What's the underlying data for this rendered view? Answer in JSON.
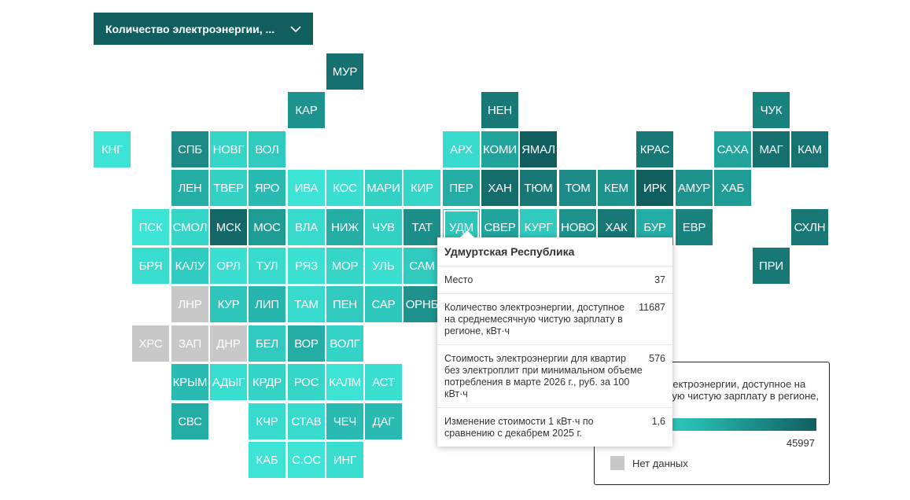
{
  "dropdown": {
    "label": "Количество электроэнергии, ...",
    "icon": "chevron-down-icon"
  },
  "map": {
    "no_data_color": "#c8c8c8",
    "scale_colors": [
      "#3fe9da",
      "#26b6ad",
      "#115e5f"
    ],
    "selected": "УДМ",
    "tiles": [
      {
        "code": "МУР",
        "col": 6,
        "row": 0,
        "v": 0.9
      },
      {
        "code": "КАР",
        "col": 5,
        "row": 1,
        "v": 0.7
      },
      {
        "code": "НЕН",
        "col": 10,
        "row": 1,
        "v": 0.85
      },
      {
        "code": "ЧУК",
        "col": 17,
        "row": 1,
        "v": 0.8
      },
      {
        "code": "КНГ",
        "col": 0,
        "row": 2,
        "v": 0.05
      },
      {
        "code": "СПБ",
        "col": 2,
        "row": 2,
        "v": 0.75
      },
      {
        "code": "НОВГ",
        "col": 3,
        "row": 2,
        "v": 0.2
      },
      {
        "code": "ВОЛ",
        "col": 4,
        "row": 2,
        "v": 0.3
      },
      {
        "code": "АРХ",
        "col": 9,
        "row": 2,
        "v": 0.15
      },
      {
        "code": "КОМИ",
        "col": 10,
        "row": 2,
        "v": 0.6
      },
      {
        "code": "ЯМАЛ",
        "col": 11,
        "row": 2,
        "v": 1.0
      },
      {
        "code": "КРАС",
        "col": 14,
        "row": 2,
        "v": 0.85
      },
      {
        "code": "САХА",
        "col": 16,
        "row": 2,
        "v": 0.6
      },
      {
        "code": "МАГ",
        "col": 17,
        "row": 2,
        "v": 0.9
      },
      {
        "code": "КАМ",
        "col": 18,
        "row": 2,
        "v": 0.88
      },
      {
        "code": "ЛЕН",
        "col": 2,
        "row": 3,
        "v": 0.55
      },
      {
        "code": "ТВЕР",
        "col": 3,
        "row": 3,
        "v": 0.25
      },
      {
        "code": "ЯРО",
        "col": 4,
        "row": 3,
        "v": 0.45
      },
      {
        "code": "ИВА",
        "col": 5,
        "row": 3,
        "v": 0.05
      },
      {
        "code": "КОС",
        "col": 6,
        "row": 3,
        "v": 0.1
      },
      {
        "code": "МАРИ",
        "col": 7,
        "row": 3,
        "v": 0.25
      },
      {
        "code": "КИР",
        "col": 8,
        "row": 3,
        "v": 0.2
      },
      {
        "code": "ПЕР",
        "col": 9,
        "row": 3,
        "v": 0.55
      },
      {
        "code": "ХАН",
        "col": 10,
        "row": 3,
        "v": 0.92
      },
      {
        "code": "ТЮМ",
        "col": 11,
        "row": 3,
        "v": 0.85
      },
      {
        "code": "ТОМ",
        "col": 12,
        "row": 3,
        "v": 0.75
      },
      {
        "code": "КЕМ",
        "col": 13,
        "row": 3,
        "v": 0.7
      },
      {
        "code": "ИРК",
        "col": 14,
        "row": 3,
        "v": 1.0
      },
      {
        "code": "АМУР",
        "col": 15,
        "row": 3,
        "v": 0.7
      },
      {
        "code": "ХАБ",
        "col": 16,
        "row": 3,
        "v": 0.65
      },
      {
        "code": "ПСК",
        "col": 1,
        "row": 4,
        "v": 0.05
      },
      {
        "code": "СМОЛ",
        "col": 2,
        "row": 4,
        "v": 0.2
      },
      {
        "code": "МСК",
        "col": 3,
        "row": 4,
        "v": 0.95
      },
      {
        "code": "МОС",
        "col": 4,
        "row": 4,
        "v": 0.65
      },
      {
        "code": "ВЛА",
        "col": 5,
        "row": 4,
        "v": 0.15
      },
      {
        "code": "НИЖ",
        "col": 6,
        "row": 4,
        "v": 0.55
      },
      {
        "code": "ЧУВ",
        "col": 7,
        "row": 4,
        "v": 0.25
      },
      {
        "code": "ТАТ",
        "col": 8,
        "row": 4,
        "v": 0.72
      },
      {
        "code": "УДМ",
        "col": 9,
        "row": 4,
        "v": 0.35
      },
      {
        "code": "СВЕР",
        "col": 10,
        "row": 4,
        "v": 0.6
      },
      {
        "code": "КУРГ",
        "col": 11,
        "row": 4,
        "v": 0.3
      },
      {
        "code": "НОВО",
        "col": 12,
        "row": 4,
        "v": 0.7
      },
      {
        "code": "ХАК",
        "col": 13,
        "row": 4,
        "v": 0.85
      },
      {
        "code": "БУР",
        "col": 14,
        "row": 4,
        "v": 0.55
      },
      {
        "code": "ЕВР",
        "col": 15,
        "row": 4,
        "v": 0.8
      },
      {
        "code": "СХЛН",
        "col": 18,
        "row": 4,
        "v": 0.85
      },
      {
        "code": "БРЯ",
        "col": 1,
        "row": 5,
        "v": 0.12
      },
      {
        "code": "КАЛУ",
        "col": 2,
        "row": 5,
        "v": 0.28
      },
      {
        "code": "ОРЛ",
        "col": 3,
        "row": 5,
        "v": 0.1
      },
      {
        "code": "ТУЛ",
        "col": 4,
        "row": 5,
        "v": 0.15
      },
      {
        "code": "РЯЗ",
        "col": 5,
        "row": 5,
        "v": 0.08
      },
      {
        "code": "МОР",
        "col": 6,
        "row": 5,
        "v": 0.2
      },
      {
        "code": "УЛЬ",
        "col": 7,
        "row": 5,
        "v": 0.1
      },
      {
        "code": "САМ",
        "col": 8,
        "row": 5,
        "v": 0.3
      },
      {
        "code": "ПРИ",
        "col": 17,
        "row": 5,
        "v": 0.85
      },
      {
        "code": "ЛНР",
        "col": 2,
        "row": 6,
        "v": -1
      },
      {
        "code": "КУР",
        "col": 3,
        "row": 6,
        "v": 0.35
      },
      {
        "code": "ЛИП",
        "col": 4,
        "row": 6,
        "v": 0.5
      },
      {
        "code": "ТАМ",
        "col": 5,
        "row": 6,
        "v": 0.15
      },
      {
        "code": "ПЕН",
        "col": 6,
        "row": 6,
        "v": 0.3
      },
      {
        "code": "САР",
        "col": 7,
        "row": 6,
        "v": 0.32
      },
      {
        "code": "ОРНБ",
        "col": 8,
        "row": 6,
        "v": 0.7
      },
      {
        "code": "ХРС",
        "col": 1,
        "row": 7,
        "v": -1
      },
      {
        "code": "ЗАП",
        "col": 2,
        "row": 7,
        "v": -1
      },
      {
        "code": "ДНР",
        "col": 3,
        "row": 7,
        "v": -1
      },
      {
        "code": "БЕЛ",
        "col": 4,
        "row": 7,
        "v": 0.3
      },
      {
        "code": "ВОР",
        "col": 5,
        "row": 7,
        "v": 0.55
      },
      {
        "code": "ВОЛГ",
        "col": 6,
        "row": 7,
        "v": 0.22
      },
      {
        "code": "КРЫМ",
        "col": 2,
        "row": 8,
        "v": 0.45
      },
      {
        "code": "АДЫГ",
        "col": 3,
        "row": 8,
        "v": 0.12
      },
      {
        "code": "КРДР",
        "col": 4,
        "row": 8,
        "v": 0.22
      },
      {
        "code": "РОС",
        "col": 5,
        "row": 8,
        "v": 0.2
      },
      {
        "code": "КАЛМ",
        "col": 6,
        "row": 8,
        "v": 0.05
      },
      {
        "code": "АСТ",
        "col": 7,
        "row": 8,
        "v": 0.1
      },
      {
        "code": "СВС",
        "col": 2,
        "row": 9,
        "v": 0.55
      },
      {
        "code": "КЧР",
        "col": 4,
        "row": 9,
        "v": 0.15
      },
      {
        "code": "СТАВ",
        "col": 5,
        "row": 9,
        "v": 0.15
      },
      {
        "code": "ЧЕЧ",
        "col": 6,
        "row": 9,
        "v": 0.45
      },
      {
        "code": "ДАГ",
        "col": 7,
        "row": 9,
        "v": 0.45
      },
      {
        "code": "КАБ",
        "col": 4,
        "row": 10,
        "v": 0.05
      },
      {
        "code": "С.ОС",
        "col": 5,
        "row": 10,
        "v": 0.05
      },
      {
        "code": "ИНГ",
        "col": 6,
        "row": 10,
        "v": 0.12
      }
    ]
  },
  "tooltip": {
    "title": "Удмуртская Республика",
    "rows": [
      {
        "label": "Место",
        "value": "37"
      },
      {
        "label": "Количество электроэнергии, доступное на среднемесячную чистую зарплату в регионе, кВт·ч",
        "value": "11687"
      },
      {
        "label": "Стоимость электроэнергии для квартир без электроплит при минимальном объеме потребления в марте 2026 г., руб. за 100 кВт·ч",
        "value": "576"
      },
      {
        "label": "Изменение стоимости 1 кВт·ч по сравнению с декабрем 2025 г.",
        "value": "1,6"
      }
    ]
  },
  "legend": {
    "title": "Количество электроэнергии, доступное на среднемесячную чистую зарплату в регионе, кВт·ч",
    "max": "45997",
    "no_data_label": "Нет данных"
  }
}
